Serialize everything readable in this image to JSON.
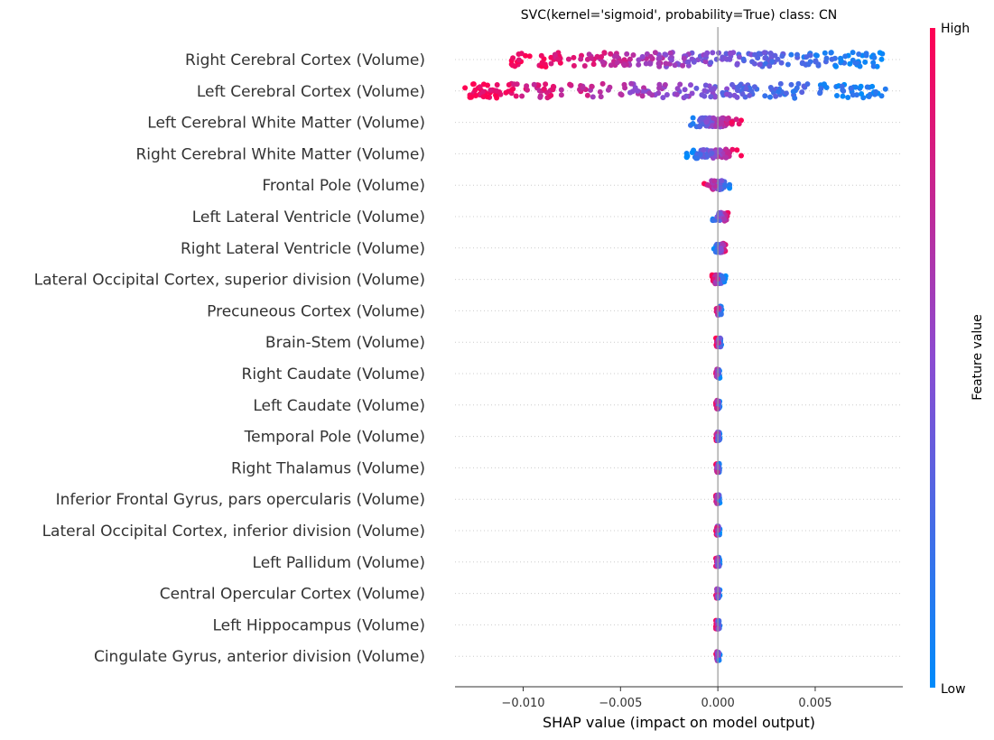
{
  "chart_data": {
    "type": "scatter",
    "subtype": "shap-beeswarm",
    "title": "SVC(kernel='sigmoid', probability=True) class: CN",
    "xlabel": "SHAP value (impact on model output)",
    "xlim": [
      -0.0135,
      0.0095
    ],
    "xticks": [
      {
        "value": -0.01,
        "label": "−0.010"
      },
      {
        "value": -0.005,
        "label": "−0.005"
      },
      {
        "value": 0.0,
        "label": "0.000"
      },
      {
        "value": 0.005,
        "label": "0.005"
      }
    ],
    "zero_line": true,
    "grid": "dotted horizontal per feature",
    "colorbar": {
      "label": "Feature value",
      "high_label": "High",
      "low_label": "Low",
      "low_color": "#008bfb",
      "mid_color": "#8c4bd1",
      "high_color": "#ff0052"
    },
    "features": [
      {
        "name": "Right Cerebral Cortex (Volume)",
        "spread_min": -0.0107,
        "spread_max": 0.0085,
        "neg_color": "high",
        "pos_color": "low",
        "density": 240
      },
      {
        "name": "Left Cerebral Cortex  (Volume)",
        "spread_min": -0.013,
        "spread_max": 0.0087,
        "neg_color": "high",
        "pos_color": "low",
        "density": 240
      },
      {
        "name": "Left Cerebral White Matter (Volume)",
        "spread_min": -0.0018,
        "spread_max": 0.0012,
        "neg_color": "low",
        "pos_color": "high",
        "density": 80
      },
      {
        "name": "Right Cerebral White Matter (Volume)",
        "spread_min": -0.0016,
        "spread_max": 0.0012,
        "neg_color": "low",
        "pos_color": "high",
        "density": 80
      },
      {
        "name": "Frontal Pole (Volume)",
        "spread_min": -0.0007,
        "spread_max": 0.0006,
        "neg_color": "high",
        "pos_color": "low",
        "density": 60
      },
      {
        "name": "Left Lateral Ventricle (Volume)",
        "spread_min": -0.0003,
        "spread_max": 0.0006,
        "neg_color": "low",
        "pos_color": "high",
        "density": 60
      },
      {
        "name": "Right Lateral Ventricle (Volume)",
        "spread_min": -0.0002,
        "spread_max": 0.0005,
        "neg_color": "low",
        "pos_color": "high",
        "density": 60
      },
      {
        "name": "Lateral Occipital Cortex, superior division (Volume)",
        "spread_min": -0.0003,
        "spread_max": 0.0004,
        "neg_color": "high",
        "pos_color": "low",
        "density": 60
      },
      {
        "name": "Precuneous Cortex (Volume)",
        "spread_min": -0.0001,
        "spread_max": 0.0002,
        "neg_color": "high",
        "pos_color": "low",
        "density": 50
      },
      {
        "name": "Brain-Stem (Volume)",
        "spread_min": -0.0001,
        "spread_max": 0.0002,
        "neg_color": "high",
        "pos_color": "low",
        "density": 50
      },
      {
        "name": "Right Caudate (Volume)",
        "spread_min": -0.0001,
        "spread_max": 0.0001,
        "neg_color": "high",
        "pos_color": "low",
        "density": 50
      },
      {
        "name": "Left Caudate (Volume)",
        "spread_min": -0.0001,
        "spread_max": 0.0001,
        "neg_color": "high",
        "pos_color": "low",
        "density": 50
      },
      {
        "name": "Temporal Pole (Volume)",
        "spread_min": -0.0001,
        "spread_max": 0.0001,
        "neg_color": "high",
        "pos_color": "low",
        "density": 50
      },
      {
        "name": "Right Thalamus (Volume)",
        "spread_min": -0.0001,
        "spread_max": 0.0001,
        "neg_color": "high",
        "pos_color": "low",
        "density": 50
      },
      {
        "name": "Inferior Frontal Gyrus, pars opercularis (Volume)",
        "spread_min": -0.0001,
        "spread_max": 0.0001,
        "neg_color": "high",
        "pos_color": "low",
        "density": 50
      },
      {
        "name": "Lateral Occipital Cortex, inferior division (Volume)",
        "spread_min": -0.0001,
        "spread_max": 0.0001,
        "neg_color": "high",
        "pos_color": "low",
        "density": 50
      },
      {
        "name": "Left Pallidum (Volume)",
        "spread_min": -0.0001,
        "spread_max": 0.0001,
        "neg_color": "high",
        "pos_color": "low",
        "density": 50
      },
      {
        "name": "Central Opercular Cortex (Volume)",
        "spread_min": -0.0001,
        "spread_max": 0.0001,
        "neg_color": "high",
        "pos_color": "low",
        "density": 50
      },
      {
        "name": "Left Hippocampus (Volume)",
        "spread_min": -0.0001,
        "spread_max": 0.0001,
        "neg_color": "high",
        "pos_color": "low",
        "density": 50
      },
      {
        "name": "Cingulate Gyrus, anterior division (Volume)",
        "spread_min": -0.0001,
        "spread_max": 0.0001,
        "neg_color": "high",
        "pos_color": "low",
        "density": 50
      }
    ]
  }
}
